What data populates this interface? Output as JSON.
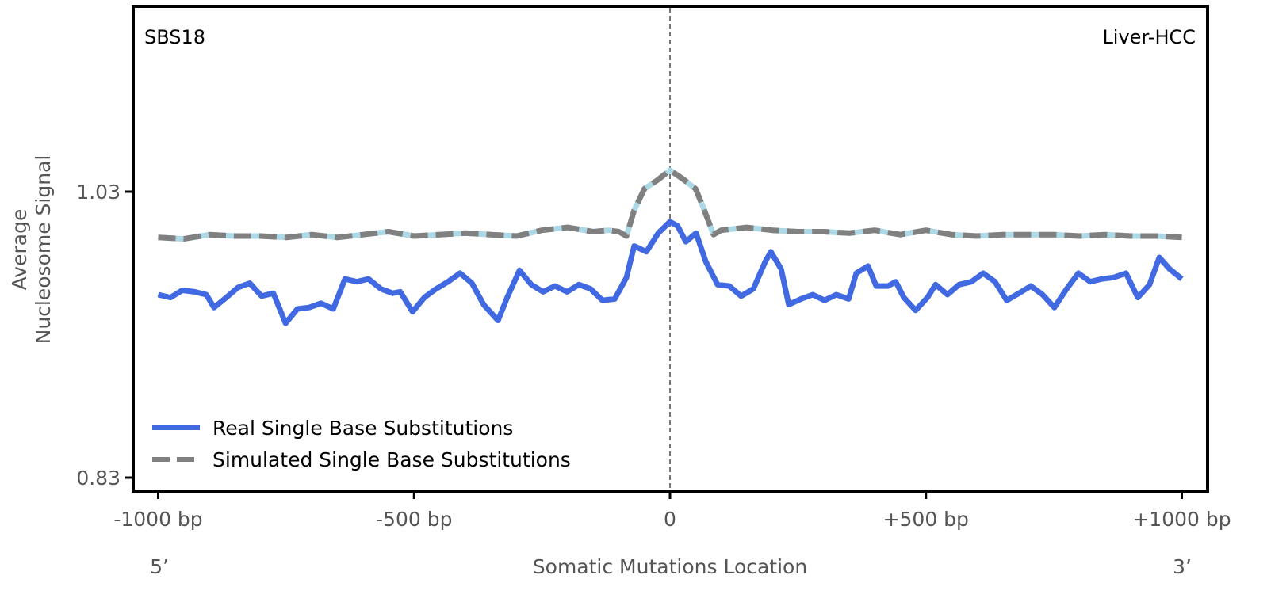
{
  "chart_data": {
    "type": "line",
    "title": "",
    "annotations": {
      "signature": "SBS18",
      "cancer_type": "Liver-HCC"
    },
    "xlabel": "Somatic Mutations Location",
    "ylabel": [
      "Average",
      "Nucleosome Signal"
    ],
    "strand_labels": {
      "left": "5’",
      "right": "3’"
    },
    "xlim": [
      -1050,
      1050
    ],
    "ylim": [
      0.82,
      1.17
    ],
    "x_ticks": [
      {
        "value": -1000,
        "label": "-1000 bp"
      },
      {
        "value": -500,
        "label": "-500 bp"
      },
      {
        "value": 0,
        "label": "0"
      },
      {
        "value": 500,
        "label": "+500 bp"
      },
      {
        "value": 1000,
        "label": "+1000 bp"
      }
    ],
    "y_ticks": [
      {
        "value": 1.03,
        "label": "1.03"
      },
      {
        "value": 0.83,
        "label": "0.83"
      }
    ],
    "vline": 0,
    "legend_position": "lower-left",
    "series": [
      {
        "name": "Real Single Base Substitutions",
        "color": "#4169e1",
        "style": "solid",
        "x": [
          -1000,
          -976,
          -953,
          -929,
          -906,
          -891,
          -867,
          -844,
          -821,
          -798,
          -775,
          -751,
          -728,
          -705,
          -682,
          -658,
          -635,
          -612,
          -589,
          -565,
          -542,
          -527,
          -503,
          -480,
          -457,
          -434,
          -410,
          -387,
          -364,
          -336,
          -318,
          -294,
          -271,
          -248,
          -225,
          -201,
          -178,
          -155,
          -132,
          -108,
          -85,
          -70,
          -46,
          -23,
          0,
          15,
          31,
          51,
          70,
          93,
          116,
          139,
          163,
          186,
          197,
          217,
          232,
          256,
          279,
          302,
          325,
          349,
          364,
          387,
          403,
          426,
          441,
          457,
          480,
          503,
          519,
          542,
          565,
          589,
          612,
          635,
          658,
          682,
          705,
          728,
          751,
          775,
          798,
          821,
          844,
          867,
          891,
          914,
          937,
          956,
          976,
          1000
        ],
        "values": [
          0.958,
          0.956,
          0.961,
          0.96,
          0.958,
          0.949,
          0.956,
          0.963,
          0.966,
          0.957,
          0.959,
          0.938,
          0.948,
          0.949,
          0.952,
          0.948,
          0.969,
          0.967,
          0.969,
          0.962,
          0.959,
          0.96,
          0.946,
          0.956,
          0.962,
          0.967,
          0.973,
          0.966,
          0.951,
          0.94,
          0.956,
          0.975,
          0.965,
          0.96,
          0.964,
          0.96,
          0.965,
          0.962,
          0.954,
          0.955,
          0.97,
          0.992,
          0.988,
          1.001,
          1.009,
          1.006,
          0.995,
          1.001,
          0.981,
          0.965,
          0.964,
          0.957,
          0.962,
          0.981,
          0.988,
          0.976,
          0.951,
          0.955,
          0.958,
          0.954,
          0.958,
          0.955,
          0.973,
          0.978,
          0.964,
          0.964,
          0.967,
          0.956,
          0.947,
          0.956,
          0.965,
          0.958,
          0.965,
          0.967,
          0.973,
          0.967,
          0.954,
          0.959,
          0.964,
          0.958,
          0.949,
          0.962,
          0.973,
          0.967,
          0.969,
          0.97,
          0.973,
          0.956,
          0.965,
          0.984,
          0.976,
          0.969
        ]
      },
      {
        "name": "Simulated Single Base Substitutions",
        "color": "#808080",
        "underlay_color": "#add8e6",
        "style": "dashed",
        "x": [
          -1000,
          -950,
          -900,
          -850,
          -800,
          -750,
          -700,
          -650,
          -600,
          -550,
          -500,
          -450,
          -400,
          -350,
          -300,
          -250,
          -200,
          -150,
          -120,
          -100,
          -85,
          -70,
          -50,
          -25,
          0,
          25,
          50,
          65,
          85,
          100,
          150,
          200,
          250,
          300,
          350,
          400,
          450,
          500,
          550,
          600,
          650,
          700,
          750,
          800,
          850,
          900,
          950,
          1000
        ],
        "values": [
          0.998,
          0.997,
          1.0,
          0.999,
          0.999,
          0.998,
          1.0,
          0.998,
          1.0,
          1.002,
          0.999,
          1.0,
          1.001,
          1.0,
          0.999,
          1.003,
          1.005,
          1.002,
          1.003,
          1.002,
          0.999,
          1.017,
          1.032,
          1.038,
          1.045,
          1.039,
          1.032,
          1.019,
          1.0,
          1.003,
          1.005,
          1.003,
          1.002,
          1.002,
          1.001,
          1.003,
          1.0,
          1.003,
          1.0,
          0.999,
          1.0,
          1.0,
          1.0,
          0.999,
          1.0,
          0.999,
          0.999,
          0.998
        ]
      }
    ]
  }
}
